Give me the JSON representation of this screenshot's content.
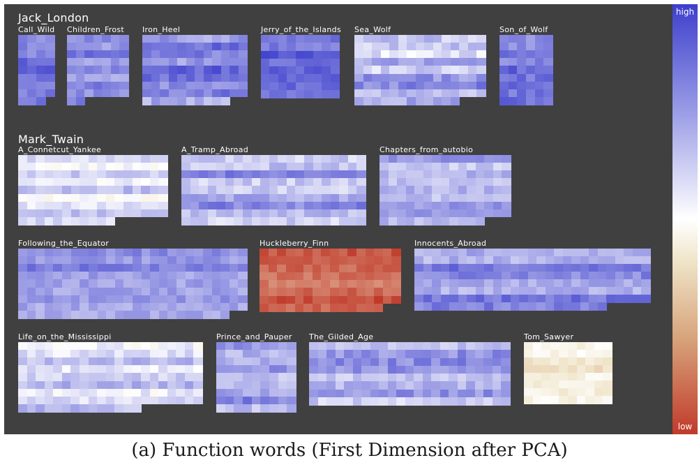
{
  "chart_data": {
    "type": "heatmap",
    "colorbar": {
      "high_label": "high",
      "low_label": "low",
      "high_color": "#3d3fcc",
      "mid_color": "#ffffff",
      "mid2_color": "#efe4c8",
      "low_color": "#c03a2a"
    },
    "groups": [
      {
        "author": "Jack_London",
        "books": [
          {
            "name": "Call_Wild",
            "base": 0.15,
            "spread": 0.12
          },
          {
            "name": "Children_Frost",
            "base": 0.2,
            "spread": 0.12
          },
          {
            "name": "Iron_Heel",
            "base": 0.18,
            "spread": 0.15
          },
          {
            "name": "Jerry_of_the_Islands",
            "base": 0.1,
            "spread": 0.1
          },
          {
            "name": "Sea_Wolf",
            "base": 0.3,
            "spread": 0.16
          },
          {
            "name": "Son_of_Wolf",
            "base": 0.15,
            "spread": 0.12
          }
        ]
      },
      {
        "author": "Mark_Twain",
        "books": [
          {
            "name": "A_Connetcut_Yankee",
            "base": 0.42,
            "spread": 0.12
          },
          {
            "name": "A_Tramp_Abroad",
            "base": 0.28,
            "spread": 0.15
          },
          {
            "name": "Chapters_from_autobio",
            "base": 0.32,
            "spread": 0.12
          },
          {
            "name": "Following_the_Equator",
            "base": 0.2,
            "spread": 0.12
          },
          {
            "name": "Huckleberry_Finn",
            "base": 0.88,
            "spread": 0.1
          },
          {
            "name": "Innocents_Abroad",
            "base": 0.22,
            "spread": 0.13
          },
          {
            "name": "Life_on_the_Mississippi",
            "base": 0.36,
            "spread": 0.14
          },
          {
            "name": "Prince_and_Pauper",
            "base": 0.28,
            "spread": 0.14
          },
          {
            "name": "The_Gilded_Age",
            "base": 0.3,
            "spread": 0.15
          },
          {
            "name": "Tom_Sawyer",
            "base": 0.56,
            "spread": 0.08
          }
        ]
      }
    ]
  },
  "caption": "(a) Function words (First Dimension after PCA)"
}
